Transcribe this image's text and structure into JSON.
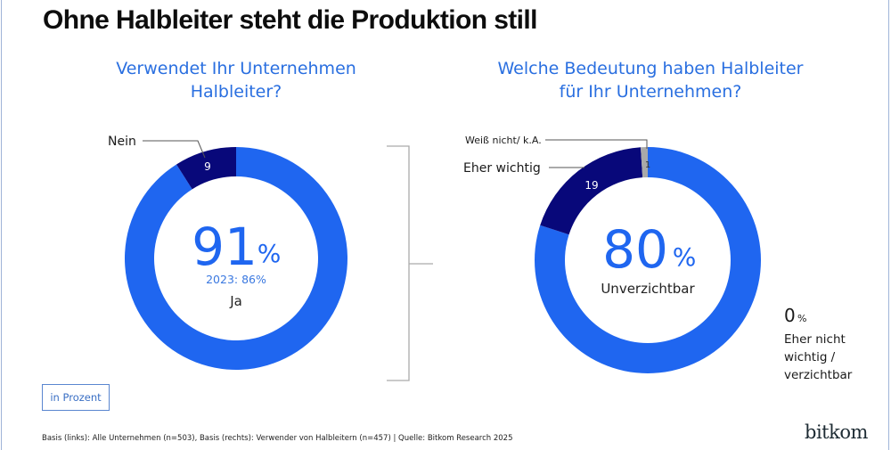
{
  "title": "Ohne Halbleiter steht die Produktion still",
  "unit_label": "in Prozent",
  "footnote": "Basis (links): Alle Unternehmen (n=503), Basis (rechts): Verwender von Halbleitern (n=457) | Quelle: Bitkom Research 2025",
  "logo": "bitkom",
  "colors": {
    "primary": "#1f66f0",
    "dark": "#08087a",
    "grey": "#a9a9a9",
    "accent_text": "#2a6fe0"
  },
  "chart_data": [
    {
      "type": "pie",
      "variant": "donut",
      "title": "Verwendet Ihr Unternehmen Halbleiter?",
      "title_lines": [
        "Verwendet Ihr Unternehmen",
        "Halbleiter?"
      ],
      "unit": "%",
      "slices": [
        {
          "label": "Ja",
          "value": 91,
          "color": "#1f66f0"
        },
        {
          "label": "Nein",
          "value": 9,
          "color": "#08087a"
        }
      ],
      "center_value": "91",
      "center_unit": "%",
      "center_comparison": "2023: 86%",
      "center_label": "Ja",
      "slice_labels": {
        "Nein": "9"
      },
      "callouts": [
        {
          "text": "Nein",
          "slice": "Nein"
        }
      ]
    },
    {
      "type": "pie",
      "variant": "donut",
      "title": "Welche Bedeutung haben Halbleiter für Ihr Unternehmen?",
      "title_lines": [
        "Welche Bedeutung haben Halbleiter",
        "für Ihr Unternehmen?"
      ],
      "unit": "%",
      "slices": [
        {
          "label": "Unverzichtbar",
          "value": 80,
          "color": "#1f66f0"
        },
        {
          "label": "Eher wichtig",
          "value": 19,
          "color": "#08087a"
        },
        {
          "label": "Weiß nicht/ k.A.",
          "value": 1,
          "color": "#a9a9a9"
        },
        {
          "label": "Eher nicht wichtig / verzichtbar",
          "value": 0,
          "color": "#1f66f0"
        }
      ],
      "center_value": "80",
      "center_unit": "%",
      "center_label": "Unverzichtbar",
      "slice_labels": {
        "Eher wichtig": "19",
        "Weiß nicht/ k.A.": "1"
      },
      "callouts": [
        {
          "text": "Weiß nicht/ k.A.",
          "slice": "Weiß nicht/ k.A."
        },
        {
          "text": "Eher wichtig",
          "slice": "Eher wichtig"
        }
      ],
      "side_note": {
        "value": "0",
        "unit": "%",
        "lines": [
          "Eher nicht",
          "wichtig /",
          "verzichtbar"
        ]
      }
    }
  ]
}
